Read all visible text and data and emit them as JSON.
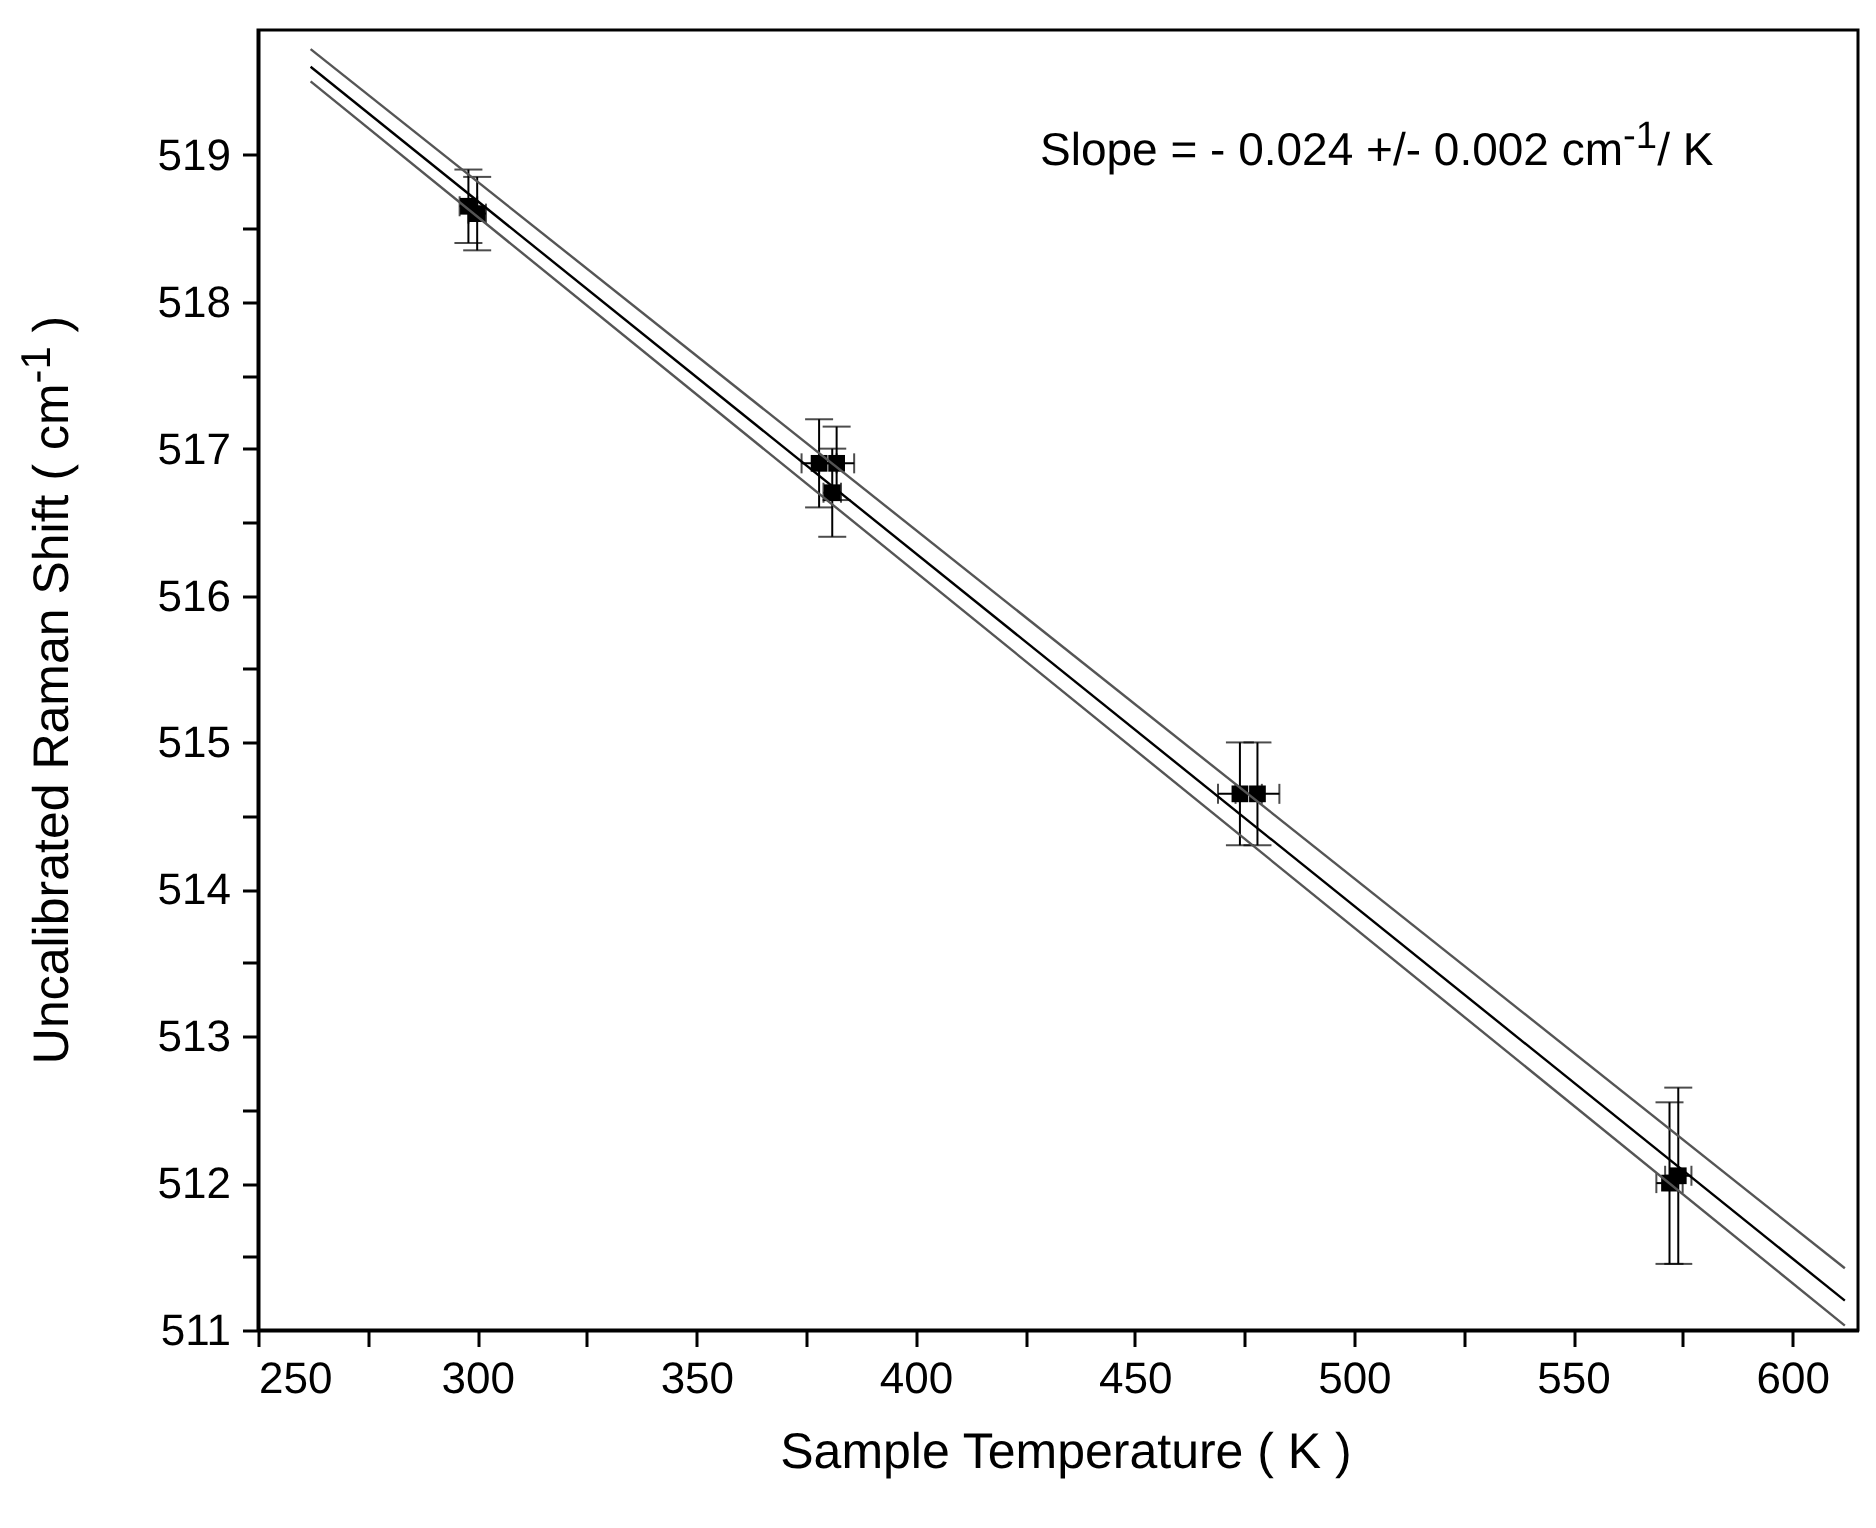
{
  "chart_data": {
    "type": "scatter",
    "xlabel": "Sample Temperature ( K )",
    "ylabel": "Uncalibrated Raman Shift ( cm$^{-1}$ )",
    "annotations": [
      "Slope = - 0.024 +/- 0.002 cm$^{-1}$/ K"
    ],
    "xlim": [
      250,
      615
    ],
    "ylim": [
      511,
      519.85
    ],
    "xticks": [
      250,
      {
        "value": 275,
        "label": null
      },
      300,
      {
        "value": 325,
        "label": null
      },
      350,
      {
        "value": 375,
        "label": null
      },
      400,
      {
        "value": 425,
        "label": null
      },
      450,
      {
        "value": 475,
        "label": null
      },
      500,
      {
        "value": 525,
        "label": null
      },
      550,
      {
        "value": 575,
        "label": null
      },
      600
    ],
    "yticks": [
      511,
      {
        "value": 511.5,
        "label": null
      },
      512,
      {
        "value": 512.5,
        "label": null
      },
      513,
      {
        "value": 513.5,
        "label": null
      },
      514,
      {
        "value": 514.5,
        "label": null
      },
      515,
      {
        "value": 515.5,
        "label": null
      },
      516,
      {
        "value": 516.5,
        "label": null
      },
      517,
      {
        "value": 517.5,
        "label": null
      },
      518,
      {
        "value": 518.5,
        "label": null
      },
      519
    ],
    "grid": false,
    "marker": "square",
    "series": [
      {
        "color": "#000000",
        "x": [
          298,
          300,
          378,
          382,
          381,
          474,
          478,
          572,
          574
        ],
        "values": [
          518.65,
          518.6,
          516.9,
          516.9,
          516.7,
          514.65,
          514.65,
          512.0,
          512.05
        ],
        "errors": [
          0.25,
          0.25,
          0.3,
          0.25,
          0.3,
          0.35,
          0.35,
          0.55,
          0.6
        ],
        "xerrors": [
          2,
          2,
          4,
          4,
          2,
          5,
          5,
          3,
          3
        ]
      },
      {
        "type": "line",
        "marker": "none",
        "color": "#000000",
        "x": [
          262,
          612
        ],
        "values": [
          519.6,
          511.2
        ]
      },
      {
        "type": "line",
        "marker": "none",
        "color": "#555555",
        "x": [
          262,
          612
        ],
        "values": [
          519.72,
          511.42
        ]
      },
      {
        "type": "line",
        "marker": "none",
        "color": "#555555",
        "x": [
          262,
          612
        ],
        "values": [
          519.5,
          511.03
        ]
      }
    ]
  }
}
